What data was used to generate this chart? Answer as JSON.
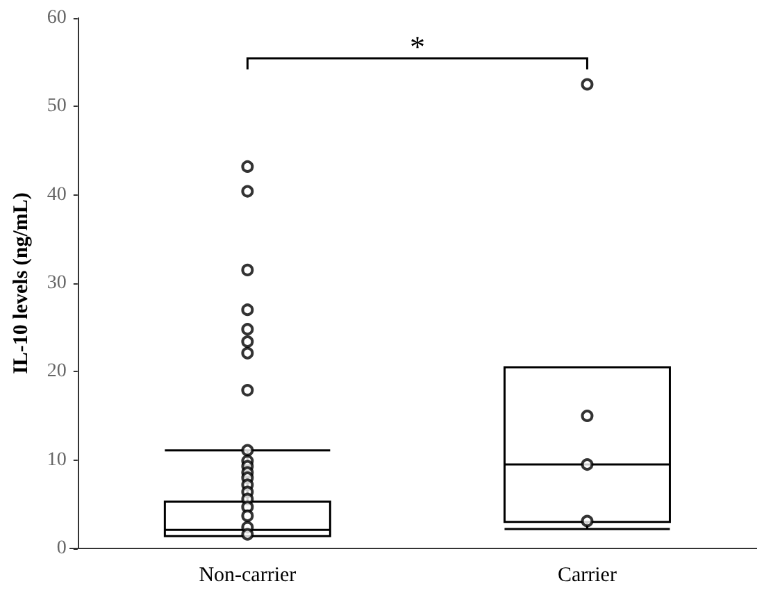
{
  "chart_data": {
    "type": "box",
    "ylabel": "IL-10 levels (ng/mL)",
    "categories": [
      "Non-carrier",
      "Carrier"
    ],
    "series": [
      {
        "color": "#000000",
        "boxes": [
          {
            "low": 1.4,
            "q1": 1.4,
            "median": 2.1,
            "q3": 5.3,
            "high": 11.1,
            "outliers": [
              43.2,
              40.4,
              31.5,
              27.0,
              24.8,
              23.4,
              22.1,
              17.9
            ]
          },
          {
            "low": 2.2,
            "q1": 3.0,
            "median": 9.5,
            "q3": 20.5,
            "high": 20.5,
            "outliers": [
              52.5
            ]
          }
        ]
      },
      {
        "type": "scatter",
        "color": "#000000",
        "x": [
          "Non-carrier",
          "Non-carrier",
          "Non-carrier",
          "Non-carrier",
          "Non-carrier",
          "Non-carrier",
          "Non-carrier",
          "Non-carrier",
          "Non-carrier",
          "Non-carrier",
          "Non-carrier",
          "Non-carrier",
          "Carrier",
          "Carrier",
          "Carrier"
        ],
        "values": [
          11.1,
          9.9,
          9.3,
          8.6,
          8.0,
          7.2,
          6.4,
          5.6,
          4.7,
          3.7,
          2.4,
          1.6,
          15.0,
          9.5,
          3.1
        ]
      }
    ],
    "ylim": [
      0,
      60
    ],
    "yticks": [
      0,
      10,
      20,
      30,
      40,
      50,
      60
    ],
    "grid": false,
    "marker": "circle",
    "annotations": [
      "*"
    ]
  }
}
